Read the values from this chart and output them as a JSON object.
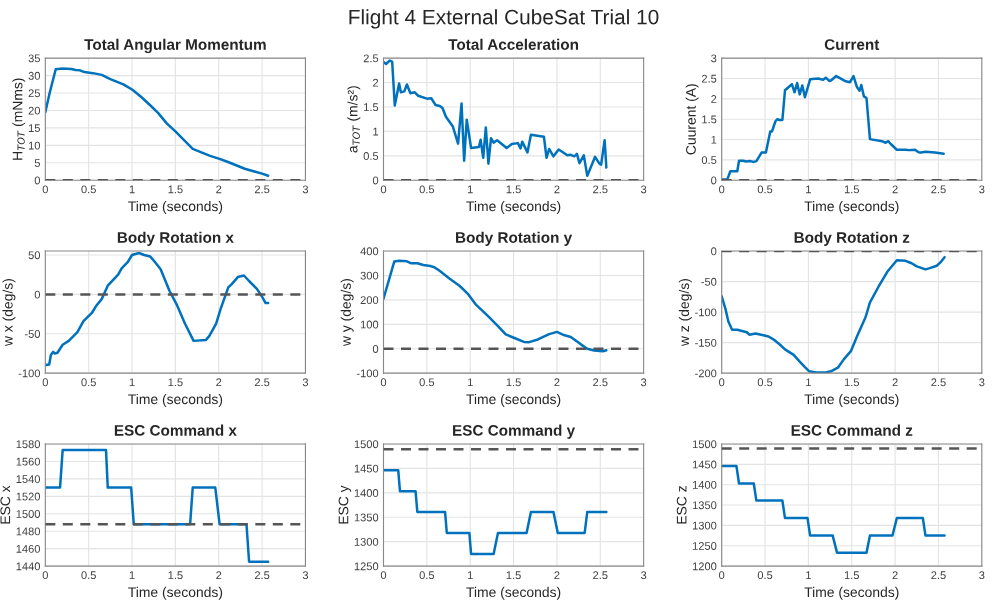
{
  "chart_data": [
    {
      "type": "other",
      "title": "Flight 4 External CubeSat Trial 10"
    },
    {
      "type": "line",
      "title": "Total Angular Momentum",
      "xlabel": "Time (seconds)",
      "ylabel": "H$_{TOT}$ (mNms)",
      "xlim": [
        0,
        3
      ],
      "xticks": [
        0,
        0.5,
        1,
        1.5,
        2,
        2.5,
        3
      ],
      "ylim": [
        0,
        35
      ],
      "yticks": [
        0,
        5,
        10,
        15,
        20,
        25,
        30,
        35
      ],
      "grid": true,
      "ref_lines": [
        {
          "axis": "y",
          "value": 0,
          "color": "#555555",
          "line_style": "dashed"
        }
      ],
      "series": [
        {
          "color": "#0072bd",
          "x": [
            0,
            0.05,
            0.12,
            0.2,
            0.3,
            0.35,
            0.4,
            0.45,
            0.55,
            0.65,
            0.75,
            0.9,
            1.0,
            1.1,
            1.2,
            1.3,
            1.4,
            1.5,
            1.6,
            1.7,
            1.8,
            1.9,
            2.0,
            2.1,
            2.2,
            2.3,
            2.4,
            2.5,
            2.57
          ],
          "values": [
            19.5,
            25,
            31.8,
            32,
            31.9,
            31.6,
            31.5,
            31,
            30.7,
            30.2,
            29,
            27.5,
            26,
            24,
            21.7,
            19.3,
            16.3,
            14,
            11.5,
            9,
            8,
            7,
            6.2,
            5.3,
            4.3,
            3.3,
            2.6,
            1.9,
            1.3
          ]
        }
      ]
    },
    {
      "type": "line",
      "title": "Total Acceleration",
      "xlabel": "Time (seconds)",
      "ylabel": "a$_{TOT}$ (m/s²)",
      "xlim": [
        0,
        3
      ],
      "xticks": [
        0,
        0.5,
        1,
        1.5,
        2,
        2.5,
        3
      ],
      "ylim": [
        0,
        2.5
      ],
      "yticks": [
        0,
        0.5,
        1,
        1.5,
        2,
        2.5
      ],
      "grid": true,
      "ref_lines": [
        {
          "axis": "y",
          "value": 0,
          "color": "#555555",
          "line_style": "dashed"
        }
      ],
      "series": [
        {
          "color": "#0072bd",
          "x": [
            0,
            0.03,
            0.07,
            0.1,
            0.13,
            0.18,
            0.2,
            0.24,
            0.27,
            0.31,
            0.36,
            0.4,
            0.5,
            0.55,
            0.6,
            0.65,
            0.68,
            0.72,
            0.8,
            0.86,
            0.9,
            0.93,
            0.96,
            1.01,
            1.1,
            1.12,
            1.15,
            1.18,
            1.21,
            1.24,
            1.27,
            1.31,
            1.42,
            1.48,
            1.55,
            1.58,
            1.6,
            1.66,
            1.7,
            1.85,
            1.88,
            1.91,
            1.96,
            2.02,
            2.12,
            2.16,
            2.2,
            2.23,
            2.26,
            2.31,
            2.35,
            2.44,
            2.49,
            2.51,
            2.55,
            2.57
          ],
          "values": [
            2.42,
            2.38,
            2.45,
            2.43,
            1.53,
            1.98,
            1.8,
            1.82,
            1.96,
            1.78,
            1.8,
            1.73,
            1.67,
            1.68,
            1.54,
            1.52,
            1.48,
            1.3,
            1.1,
            0.75,
            1.57,
            0.4,
            1.24,
            0.66,
            0.68,
            0.83,
            0.46,
            1.08,
            0.34,
            0.86,
            0.77,
            0.82,
            0.66,
            0.74,
            0.76,
            0.65,
            0.79,
            0.57,
            0.93,
            0.89,
            0.46,
            0.64,
            0.49,
            0.63,
            0.51,
            0.52,
            0.49,
            0.54,
            0.35,
            0.51,
            0.09,
            0.48,
            0.34,
            0.32,
            0.82,
            0.26
          ]
        }
      ]
    },
    {
      "type": "line",
      "title": "Current",
      "xlabel": "Time (seconds)",
      "ylabel": "Cuurent (A)",
      "xlim": [
        0,
        3
      ],
      "xticks": [
        0,
        0.5,
        1,
        1.5,
        2,
        2.5,
        3
      ],
      "ylim": [
        0,
        3
      ],
      "yticks": [
        0,
        0.5,
        1,
        1.5,
        2,
        2.5,
        3
      ],
      "grid": true,
      "ref_lines": [
        {
          "axis": "y",
          "value": 0,
          "color": "#555555",
          "line_style": "dashed"
        }
      ],
      "series": [
        {
          "color": "#0072bd",
          "x": [
            0,
            0.065,
            0.1,
            0.18,
            0.2,
            0.25,
            0.28,
            0.33,
            0.37,
            0.4,
            0.46,
            0.51,
            0.56,
            0.58,
            0.62,
            0.64,
            0.67,
            0.7,
            0.73,
            0.81,
            0.84,
            0.87,
            0.9,
            0.93,
            0.96,
            1.02,
            1.11,
            1.17,
            1.2,
            1.24,
            1.26,
            1.32,
            1.38,
            1.43,
            1.48,
            1.52,
            1.56,
            1.59,
            1.61,
            1.64,
            1.67,
            1.71,
            1.85,
            1.89,
            1.92,
            1.95,
            2.02,
            2.12,
            2.16,
            2.23,
            2.27,
            2.3,
            2.35,
            2.46,
            2.56
          ],
          "values": [
            0.02,
            0.02,
            0.22,
            0.22,
            0.48,
            0.48,
            0.46,
            0.47,
            0.45,
            0.47,
            0.68,
            0.68,
            1.2,
            1.2,
            1.45,
            1.5,
            1.48,
            1.48,
            2.21,
            2.36,
            2.16,
            2.39,
            2.11,
            2.33,
            2.04,
            2.48,
            2.5,
            2.47,
            2.52,
            2.44,
            2.45,
            2.56,
            2.49,
            2.43,
            2.41,
            2.56,
            2.29,
            2.2,
            2.34,
            2.06,
            2.02,
            1.01,
            0.96,
            0.92,
            0.96,
            0.89,
            0.75,
            0.75,
            0.74,
            0.75,
            0.69,
            0.68,
            0.7,
            0.68,
            0.65
          ]
        }
      ]
    },
    {
      "type": "line",
      "title": "Body Rotation x",
      "xlabel": "Time (seconds)",
      "ylabel": "w x (deg/s)",
      "xlim": [
        0,
        3
      ],
      "xticks": [
        0,
        0.5,
        1,
        1.5,
        2,
        2.5,
        3
      ],
      "ylim": [
        -100,
        55
      ],
      "yticks": [
        -100,
        -50,
        0,
        50
      ],
      "grid": true,
      "ref_lines": [
        {
          "axis": "y",
          "value": 0,
          "color": "#555555",
          "line_style": "dashed"
        }
      ],
      "series": [
        {
          "color": "#0072bd",
          "x": [
            0,
            0.045,
            0.064,
            0.09,
            0.11,
            0.14,
            0.2,
            0.27,
            0.37,
            0.44,
            0.54,
            0.59,
            0.65,
            0.72,
            0.84,
            0.88,
            0.95,
            1.0,
            1.03,
            1.08,
            1.14,
            1.21,
            1.25,
            1.33,
            1.43,
            1.52,
            1.61,
            1.71,
            1.85,
            1.89,
            1.97,
            2.02,
            2.11,
            2.15,
            2.22,
            2.29,
            2.35,
            2.44,
            2.5,
            2.54,
            2.57
          ],
          "values": [
            -89.5,
            -89,
            -77,
            -73,
            -75,
            -74,
            -64,
            -59,
            -48,
            -34,
            -23,
            -14,
            -6,
            11,
            25,
            33,
            41,
            50,
            51,
            52.5,
            50,
            48,
            43,
            32,
            5,
            -14,
            -37,
            -59,
            -58,
            -53,
            -37,
            -19,
            9,
            13,
            22,
            24,
            17,
            7,
            -3,
            -11,
            -11
          ]
        }
      ]
    },
    {
      "type": "line",
      "title": "Body Rotation y",
      "xlabel": "Time (seconds)",
      "ylabel": "w y (deg/s)",
      "xlim": [
        0,
        3
      ],
      "xticks": [
        0,
        0.5,
        1,
        1.5,
        2,
        2.5,
        3
      ],
      "ylim": [
        -100,
        400
      ],
      "yticks": [
        -100,
        0,
        100,
        200,
        300,
        400
      ],
      "grid": true,
      "ref_lines": [
        {
          "axis": "y",
          "value": 0,
          "color": "#555555",
          "line_style": "dashed"
        }
      ],
      "series": [
        {
          "color": "#0072bd",
          "x": [
            0,
            0.124,
            0.18,
            0.27,
            0.32,
            0.39,
            0.46,
            0.54,
            0.59,
            0.65,
            0.76,
            0.88,
            0.97,
            1.06,
            1.2,
            1.32,
            1.41,
            1.51,
            1.62,
            1.68,
            1.78,
            1.91,
            2.0,
            2.08,
            2.16,
            2.28,
            2.35,
            2.43,
            2.53,
            2.57
          ],
          "values": [
            205,
            357,
            360,
            358,
            350,
            350,
            343,
            339,
            333,
            318,
            288,
            257,
            226,
            183,
            136,
            93,
            59,
            44,
            28,
            27,
            38,
            60,
            69,
            56,
            48,
            17,
            0,
            -7,
            -10,
            -6
          ]
        }
      ]
    },
    {
      "type": "line",
      "title": "Body Rotation z",
      "xlabel": "Time (seconds)",
      "ylabel": "w z (deg/s)",
      "xlim": [
        0,
        3
      ],
      "xticks": [
        0,
        0.5,
        1,
        1.5,
        2,
        2.5,
        3
      ],
      "ylim": [
        -200,
        0
      ],
      "yticks": [
        -200,
        -150,
        -100,
        -50,
        0
      ],
      "grid": true,
      "ref_lines": [
        {
          "axis": "y",
          "value": 0,
          "color": "#555555",
          "line_style": "dashed"
        }
      ],
      "series": [
        {
          "color": "#0072bd",
          "x": [
            0,
            0.046,
            0.076,
            0.12,
            0.18,
            0.29,
            0.32,
            0.39,
            0.48,
            0.54,
            0.6,
            0.67,
            0.73,
            0.83,
            0.9,
            0.96,
            1.01,
            1.09,
            1.2,
            1.26,
            1.34,
            1.41,
            1.49,
            1.56,
            1.66,
            1.71,
            1.81,
            1.91,
            2.02,
            2.12,
            2.19,
            2.25,
            2.35,
            2.4,
            2.48,
            2.52,
            2.57
          ],
          "values": [
            -74,
            -96,
            -115,
            -129,
            -129,
            -133,
            -137,
            -135,
            -138,
            -140,
            -145,
            -153,
            -161,
            -170,
            -181,
            -190,
            -197,
            -199,
            -199,
            -197,
            -191,
            -177,
            -164,
            -140,
            -108,
            -84,
            -58,
            -34,
            -15,
            -16,
            -20,
            -25,
            -30,
            -28,
            -24,
            -19,
            -10
          ]
        }
      ]
    },
    {
      "type": "line",
      "title": "ESC Command x",
      "xlabel": "Time (seconds)",
      "ylabel": "ESC x",
      "xlim": [
        0,
        3
      ],
      "xticks": [
        0,
        0.5,
        1,
        1.5,
        2,
        2.5,
        3
      ],
      "ylim": [
        1440,
        1580
      ],
      "yticks": [
        1440,
        1460,
        1480,
        1500,
        1520,
        1540,
        1560,
        1580
      ],
      "grid": true,
      "ref_lines": [
        {
          "axis": "y",
          "value": 1488,
          "color": "#555555",
          "line_style": "dashed"
        }
      ],
      "series": [
        {
          "color": "#0072bd",
          "x": [
            0,
            0.17,
            0.2,
            0.7,
            0.72,
            0.99,
            1.02,
            1.67,
            1.7,
            1.96,
            2.01,
            2.32,
            2.35,
            2.57
          ],
          "values": [
            1530,
            1530,
            1573,
            1573,
            1530,
            1530,
            1488,
            1488,
            1530,
            1530,
            1488,
            1488,
            1445,
            1445
          ]
        }
      ]
    },
    {
      "type": "line",
      "title": "ESC Command y",
      "xlabel": "Time (seconds)",
      "ylabel": "ESC y",
      "xlim": [
        0,
        3
      ],
      "xticks": [
        0,
        0.5,
        1,
        1.5,
        2,
        2.5,
        3
      ],
      "ylim": [
        1250,
        1500
      ],
      "yticks": [
        1250,
        1300,
        1350,
        1400,
        1450,
        1500
      ],
      "grid": true,
      "ref_lines": [
        {
          "axis": "y",
          "value": 1489,
          "color": "#555555",
          "line_style": "dashed"
        }
      ],
      "series": [
        {
          "color": "#0072bd",
          "x": [
            0,
            0.17,
            0.19,
            0.37,
            0.39,
            0.71,
            0.73,
            0.99,
            1.01,
            1.27,
            1.32,
            1.65,
            1.7,
            1.96,
            2.01,
            2.32,
            2.35,
            2.57
          ],
          "values": [
            1446,
            1446,
            1403,
            1403,
            1361,
            1361,
            1318,
            1318,
            1275,
            1275,
            1318,
            1318,
            1361,
            1361,
            1318,
            1318,
            1361,
            1361
          ]
        }
      ]
    },
    {
      "type": "line",
      "title": "ESC Command z",
      "xlabel": "Time (seconds)",
      "ylabel": "ESC z",
      "xlim": [
        0,
        3
      ],
      "xticks": [
        0,
        0.5,
        1,
        1.5,
        2,
        2.5,
        3
      ],
      "ylim": [
        1200,
        1500
      ],
      "yticks": [
        1200,
        1250,
        1300,
        1350,
        1400,
        1450,
        1500
      ],
      "grid": true,
      "ref_lines": [
        {
          "axis": "y",
          "value": 1489,
          "color": "#555555",
          "line_style": "dashed"
        }
      ],
      "series": [
        {
          "color": "#0072bd",
          "x": [
            0,
            0.17,
            0.2,
            0.37,
            0.4,
            0.7,
            0.73,
            0.99,
            1.02,
            1.28,
            1.33,
            1.67,
            1.71,
            1.97,
            2.02,
            2.32,
            2.35,
            2.57
          ],
          "values": [
            1446,
            1446,
            1403,
            1403,
            1361,
            1361,
            1318,
            1318,
            1275,
            1275,
            1233,
            1233,
            1275,
            1275,
            1318,
            1318,
            1275,
            1275
          ]
        }
      ]
    }
  ]
}
